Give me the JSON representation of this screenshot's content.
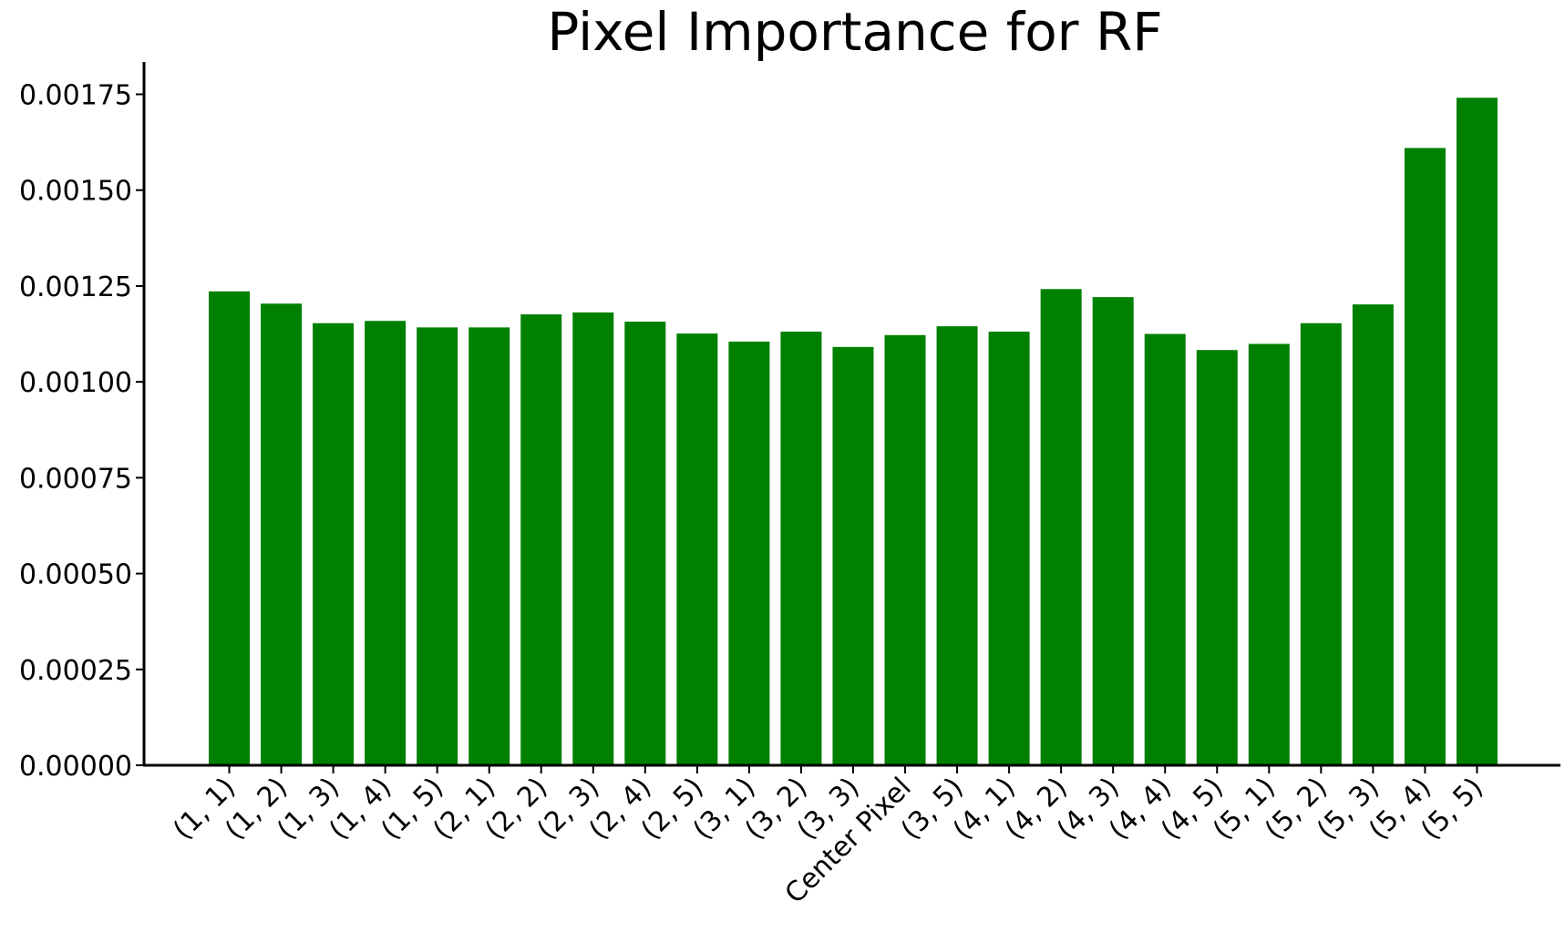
{
  "chart_data": {
    "type": "bar",
    "title": "Pixel Importance for RF",
    "xlabel": "",
    "ylabel": "",
    "categories": [
      "(1, 1)",
      "(1, 2)",
      "(1, 3)",
      "(1, 4)",
      "(1, 5)",
      "(2, 1)",
      "(2, 2)",
      "(2, 3)",
      "(2, 4)",
      "(2, 5)",
      "(3, 1)",
      "(3, 2)",
      "(3, 3)",
      "Center Pixel",
      "(3, 5)",
      "(4, 1)",
      "(4, 2)",
      "(4, 3)",
      "(4, 4)",
      "(4, 5)",
      "(5, 1)",
      "(5, 2)",
      "(5, 3)",
      "(5, 4)",
      "(5, 5)"
    ],
    "values": [
      0.001236,
      0.001204,
      0.001153,
      0.001159,
      0.001142,
      0.001142,
      0.001176,
      0.001181,
      0.001157,
      0.001126,
      0.001105,
      0.001131,
      0.001091,
      0.001122,
      0.001145,
      0.001131,
      0.001242,
      0.001221,
      0.001125,
      0.001083,
      0.001099,
      0.001153,
      0.001202,
      0.00161,
      0.001741
    ],
    "ylim": [
      0,
      0.00183
    ],
    "yticks": [
      "0.00000",
      "0.00025",
      "0.00050",
      "0.00075",
      "0.00100",
      "0.00125",
      "0.00150",
      "0.00175"
    ],
    "ytick_values": [
      0,
      0.00025,
      0.0005,
      0.00075,
      0.001,
      0.00125,
      0.0015,
      0.00175
    ],
    "bar_color": "#008000",
    "grid": false,
    "legend": "none"
  }
}
